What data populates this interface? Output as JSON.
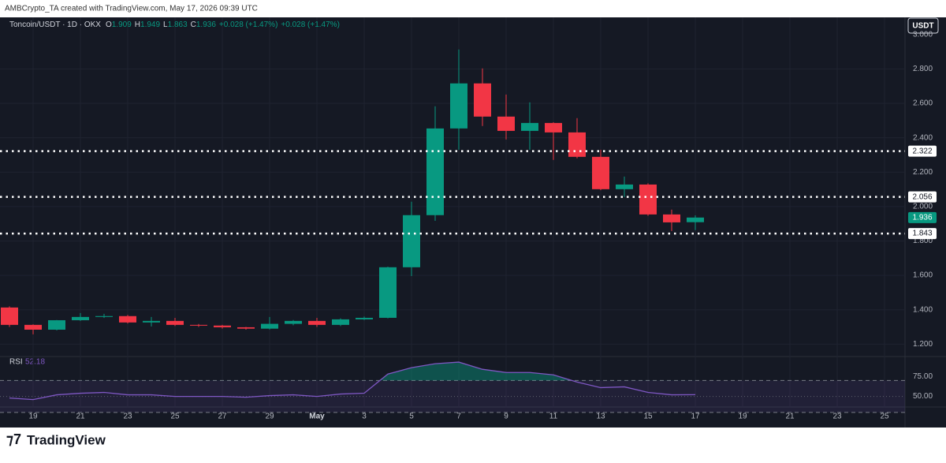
{
  "header": "AMBCrypto_TA created with TradingView.com, May 17, 2026 09:39 UTC",
  "footer": {
    "brand": "TradingView"
  },
  "chart_data": [
    {
      "type": "candlestick",
      "title": "Toncoin/USDT · 1D · OKX",
      "legend": [
        {
          "label": "O",
          "value": 1.909
        },
        {
          "label": "H",
          "value": 1.949
        },
        {
          "label": "L",
          "value": 1.863
        },
        {
          "label": "C",
          "value": 1.936
        }
      ],
      "change": "+0.028 (+1.47%)",
      "change_repeat": "+0.028 (+1.47%)",
      "currency": "USDT",
      "categories": [
        null,
        "19",
        null,
        "21",
        null,
        "23",
        null,
        "25",
        null,
        "27",
        null,
        "29",
        null,
        "May",
        null,
        "3",
        null,
        "5",
        null,
        "7",
        null,
        "9",
        null,
        "11",
        null,
        "13",
        null,
        "15",
        null,
        "17",
        null,
        "19",
        null,
        "21",
        null,
        "23",
        null,
        "25"
      ],
      "open": [
        1.413,
        1.312,
        1.284,
        1.339,
        1.358,
        1.363,
        1.326,
        1.335,
        1.312,
        1.308,
        1.298,
        1.29,
        1.318,
        1.335,
        1.312,
        1.344,
        1.353,
        1.647,
        1.95,
        2.454,
        2.716,
        2.523,
        2.44,
        2.486,
        2.431,
        2.289,
        2.101,
        2.128,
        1.954,
        1.909,
        null,
        null,
        null,
        null,
        null,
        null,
        null,
        null
      ],
      "high": [
        1.42,
        1.315,
        1.34,
        1.381,
        1.376,
        1.37,
        1.358,
        1.353,
        1.317,
        1.312,
        1.3,
        1.358,
        1.34,
        1.353,
        1.35,
        1.36,
        1.65,
        2.028,
        2.583,
        2.913,
        2.803,
        2.651,
        2.606,
        2.49,
        2.514,
        2.33,
        2.174,
        2.135,
        1.982,
        1.949,
        null,
        null,
        null,
        null,
        null,
        null,
        null,
        null
      ],
      "low": [
        1.3,
        1.257,
        1.28,
        1.335,
        1.352,
        1.32,
        1.303,
        1.305,
        1.3,
        1.29,
        1.284,
        1.285,
        1.31,
        1.3,
        1.305,
        1.34,
        1.35,
        1.596,
        1.917,
        2.33,
        2.468,
        2.39,
        2.33,
        2.271,
        2.28,
        2.095,
        2.055,
        1.946,
        1.858,
        1.863,
        null,
        null,
        null,
        null,
        null,
        null,
        null,
        null
      ],
      "close": [
        1.312,
        1.284,
        1.339,
        1.358,
        1.363,
        1.326,
        1.335,
        1.312,
        1.308,
        1.298,
        1.29,
        1.318,
        1.335,
        1.312,
        1.344,
        1.353,
        1.647,
        1.95,
        2.454,
        2.716,
        2.523,
        2.44,
        2.486,
        2.431,
        2.289,
        2.101,
        2.128,
        1.954,
        1.908,
        1.936,
        null,
        null,
        null,
        null,
        null,
        null,
        null,
        null
      ],
      "up_color": "#089981",
      "down_color": "#f23645",
      "ylim": [
        1.128,
        3.1
      ],
      "yticks": [
        {
          "value": 1.2,
          "label": "1.200"
        },
        {
          "value": 1.4,
          "label": "1.400"
        },
        {
          "value": 1.6,
          "label": "1.600"
        },
        {
          "value": 1.8,
          "label": "1.800"
        },
        {
          "value": 2.0,
          "label": "2.000"
        },
        {
          "value": 2.2,
          "label": "2.200"
        },
        {
          "value": 2.4,
          "label": "2.400"
        },
        {
          "value": 2.6,
          "label": "2.600"
        },
        {
          "value": 2.8,
          "label": "2.800"
        }
      ],
      "levels": [
        2.322,
        2.056,
        1.843
      ],
      "last_price": 1.936,
      "grid": true
    },
    {
      "type": "line",
      "name": "RSI",
      "last_value": 52.18,
      "color": "#7e57c2",
      "values": [
        48,
        46,
        52,
        54,
        55,
        52,
        52,
        50,
        50,
        50,
        49,
        51,
        52,
        50,
        53,
        54,
        78,
        86,
        91,
        93,
        84,
        80,
        80,
        77,
        68,
        61,
        62,
        55,
        52,
        52.18,
        null,
        null,
        null,
        null,
        null,
        null,
        null,
        null
      ],
      "ylim": [
        15,
        100
      ],
      "yticks": [
        {
          "value": 50,
          "label": "50.00"
        },
        {
          "value": 75,
          "label": "75.00"
        }
      ],
      "bands": [
        30,
        70
      ],
      "midline": 50
    }
  ]
}
